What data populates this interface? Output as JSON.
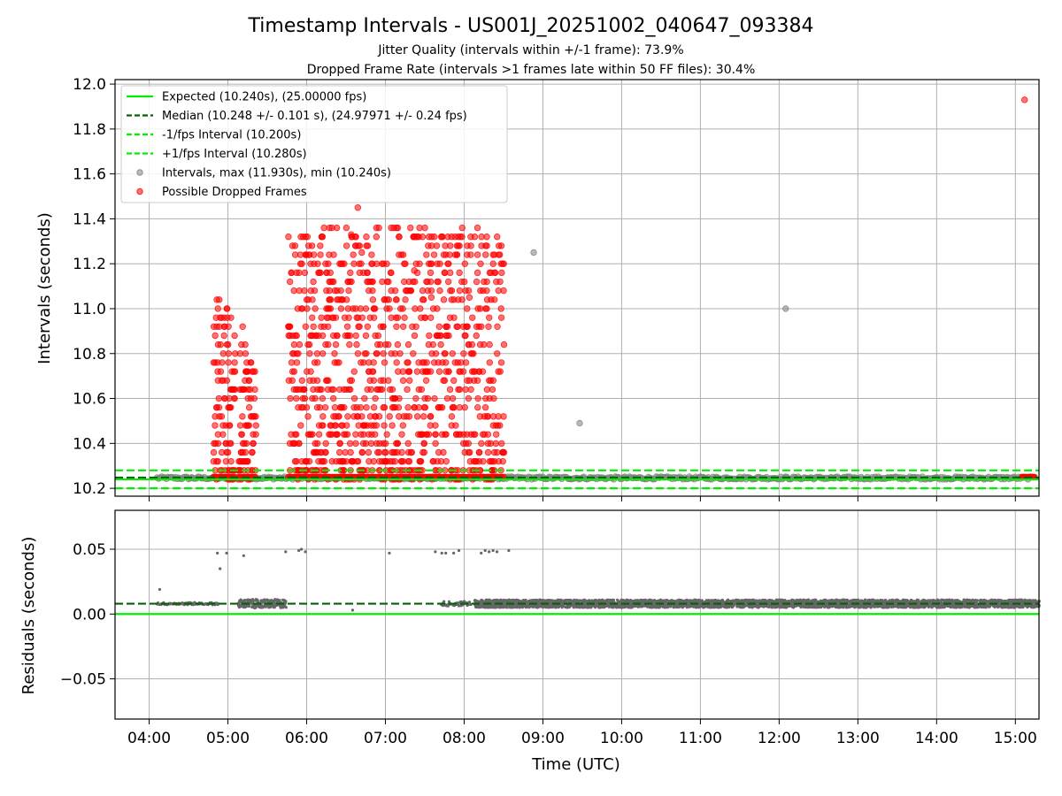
{
  "chart_data": [
    {
      "type": "scatter",
      "title": "Timestamp Intervals - US001J_20251002_040647_093384",
      "subtitle_1": "Jitter Quality (intervals within +/-1 frame): 73.9%",
      "subtitle_2": "Dropped Frame Rate (intervals >1 frames late within 50 FF files): 30.4%",
      "xlabel": "",
      "ylabel": "Intervals (seconds)",
      "xlim": [
        "03:34",
        "15:18"
      ],
      "ylim": [
        10.165,
        12.02
      ],
      "yticks": [
        "10.2",
        "10.4",
        "10.6",
        "10.8",
        "11.0",
        "11.2",
        "11.4",
        "11.6",
        "11.8",
        "12.0"
      ],
      "grid": true,
      "legend_position": "upper-left",
      "legend": [
        "Expected (10.240s), (25.00000 fps)",
        "Median (10.248 +/- 0.101 s), (24.97971 +/- 0.24 fps)",
        "-1/fps Interval (10.200s)",
        "+1/fps Interval (10.280s)",
        "Intervals, max (11.930s), min (10.240s)",
        "Possible Dropped Frames"
      ],
      "lines": {
        "expected": 10.24,
        "median": 10.248,
        "minus_1fps": 10.2,
        "plus_1fps": 10.28
      },
      "dropped_clusters": [
        {
          "start": "04:49",
          "end": "05:05",
          "min": 10.25,
          "max": 11.04
        },
        {
          "start": "05:08",
          "end": "05:15",
          "min": 10.25,
          "max": 10.92
        },
        {
          "start": "05:16",
          "end": "05:21",
          "min": 10.25,
          "max": 10.76
        },
        {
          "start": "05:46",
          "end": "08:30",
          "min": 10.25,
          "max": 11.37
        }
      ],
      "dropped_points": [
        {
          "x": "06:34",
          "y": 11.33
        },
        {
          "x": "06:39",
          "y": 11.45
        },
        {
          "x": "06:42",
          "y": 11.25
        },
        {
          "x": "07:22",
          "y": 11.17
        },
        {
          "x": "07:35",
          "y": 11.05
        },
        {
          "x": "08:04",
          "y": 11.05
        },
        {
          "x": "15:07",
          "y": 11.93
        }
      ],
      "normal_points": [
        {
          "x": "08:53",
          "y": 11.25
        },
        {
          "x": "09:28",
          "y": 10.49
        },
        {
          "x": "12:05",
          "y": 11.0
        }
      ],
      "colors": {
        "expected": "#00ee00",
        "median": "#006400",
        "dropped": "#ff0000",
        "normal": "#808080"
      }
    },
    {
      "type": "scatter",
      "xlabel": "Time (UTC)",
      "ylabel": "Residuals (seconds)",
      "xlim": [
        "03:34",
        "15:18"
      ],
      "ylim": [
        -0.081,
        0.08
      ],
      "yticks": [
        "−0.05",
        "0.00",
        "0.05"
      ],
      "xticks": [
        "04:00",
        "05:00",
        "06:00",
        "07:00",
        "08:00",
        "09:00",
        "10:00",
        "11:00",
        "12:00",
        "13:00",
        "14:00",
        "15:00"
      ],
      "grid": true,
      "lines": {
        "expected": 0.0,
        "median": 0.008
      },
      "residual_band": {
        "center": 0.008,
        "spread": 0.003
      },
      "outliers": [
        {
          "x": "04:08",
          "y": 0.019
        },
        {
          "x": "04:52",
          "y": 0.047
        },
        {
          "x": "04:54",
          "y": 0.035
        },
        {
          "x": "04:59",
          "y": 0.047
        },
        {
          "x": "05:12",
          "y": 0.045
        },
        {
          "x": "05:44",
          "y": 0.048
        },
        {
          "x": "05:54",
          "y": 0.049
        },
        {
          "x": "05:56",
          "y": 0.05
        },
        {
          "x": "05:59",
          "y": 0.048
        },
        {
          "x": "06:35",
          "y": 0.003
        },
        {
          "x": "07:03",
          "y": 0.047
        },
        {
          "x": "07:38",
          "y": 0.048
        },
        {
          "x": "07:43",
          "y": 0.047
        },
        {
          "x": "07:46",
          "y": 0.047
        },
        {
          "x": "07:52",
          "y": 0.047
        },
        {
          "x": "07:56",
          "y": 0.049
        },
        {
          "x": "08:13",
          "y": 0.047
        },
        {
          "x": "08:16",
          "y": 0.049
        },
        {
          "x": "08:19",
          "y": 0.048
        },
        {
          "x": "08:22",
          "y": 0.049
        },
        {
          "x": "08:25",
          "y": 0.048
        },
        {
          "x": "08:34",
          "y": 0.049
        }
      ],
      "colors": {
        "expected": "#00ee00",
        "median": "#006400",
        "points": "#666666"
      }
    }
  ]
}
